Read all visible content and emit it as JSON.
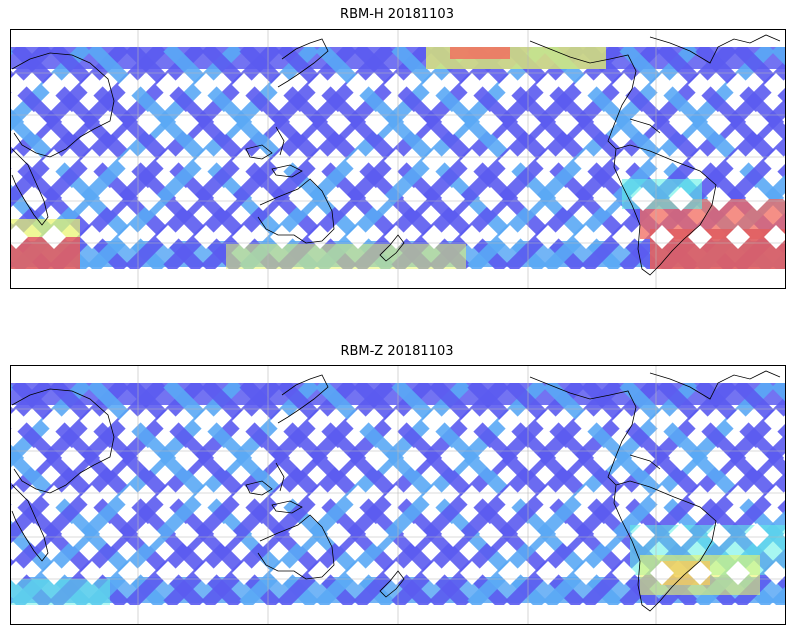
{
  "panels": [
    {
      "title": "RBM-H 20181103",
      "colors": {
        "low": "#5b5bf0",
        "mid_low": "#5aa8f5",
        "mid": "#5ff0e6",
        "mid_high": "#e8f56b",
        "high": "#f26a5e",
        "top": "#e05f63"
      }
    },
    {
      "title": "RBM-Z 20181103",
      "colors": {
        "low": "#5b5bf0",
        "mid_low": "#5aa8f5",
        "mid": "#5ff0e6",
        "mid_high": "#e8f56b",
        "high": "#f5a25e",
        "top": "#f5c95e"
      }
    }
  ],
  "map": {
    "projection": "equirectangular",
    "gridlines": true,
    "coastlines": true
  }
}
